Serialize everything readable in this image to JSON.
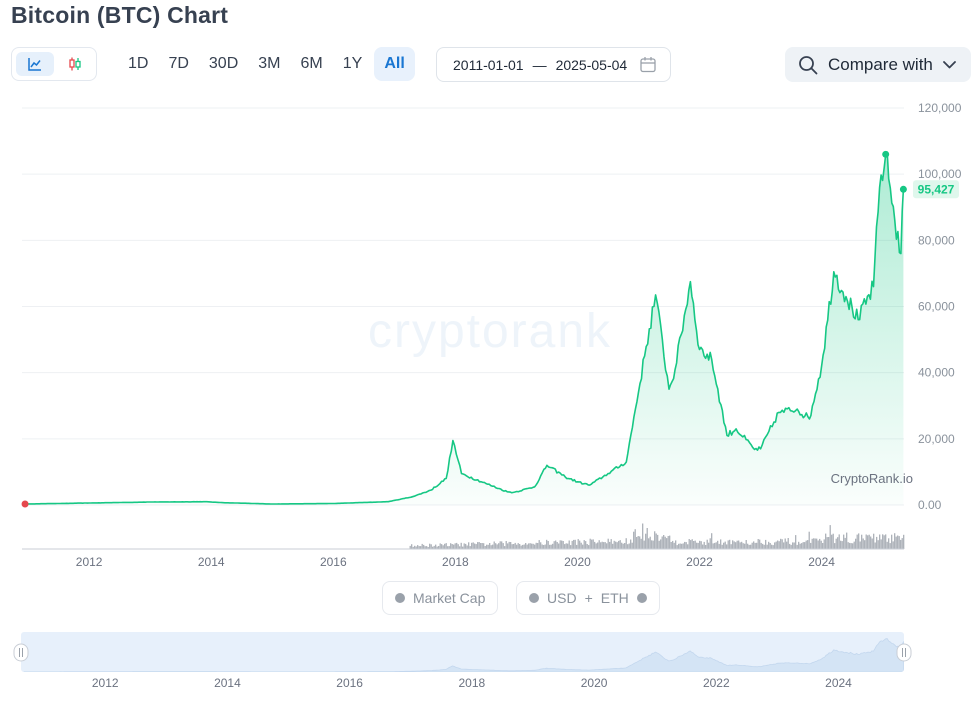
{
  "page": {
    "title": "Bitcoin (BTC) Chart"
  },
  "toolbar": {
    "ranges": [
      "1D",
      "7D",
      "30D",
      "3M",
      "6M",
      "1Y",
      "All"
    ],
    "active_range": "All",
    "date_from": "2011-01-01",
    "date_sep": "—",
    "date_to": "2025-05-04",
    "compare_label": "Compare with"
  },
  "legend": {
    "market_cap": "Market Cap",
    "usd": "USD",
    "plus": "+",
    "eth": "ETH"
  },
  "colors": {
    "line": "#16c784",
    "accent": "#1976d2",
    "start_dot": "#e5484d",
    "volume": "#a6abb3",
    "navigator_bg": "#e7f0fb",
    "navigator_area": "#d4e4f5"
  },
  "chart_data": {
    "type": "area",
    "watermark": "cryptorank",
    "attribution": "CryptoRank.io",
    "x_range": [
      2010.9,
      2025.35
    ],
    "ylim": [
      0,
      120000
    ],
    "y_ticks": [
      0,
      20000,
      40000,
      60000,
      80000,
      100000,
      120000
    ],
    "y_tick_labels": [
      "0.00",
      "20,000",
      "40,000",
      "60,000",
      "80,000",
      "100,000",
      "120,000"
    ],
    "x_ticks": [
      2012,
      2014,
      2016,
      2018,
      2020,
      2022,
      2024
    ],
    "x_tick_labels": [
      "2012",
      "2014",
      "2016",
      "2018",
      "2020",
      "2022",
      "2024"
    ],
    "last_value_label": "95,427",
    "grid": true,
    "series": [
      {
        "x": [
          2010.95,
          2012.0,
          2013.0,
          2013.9,
          2014.2,
          2015.0,
          2016.0,
          2016.9,
          2017.3,
          2017.6,
          2017.85,
          2017.96,
          2018.1,
          2018.5,
          2018.85,
          2018.95,
          2019.3,
          2019.5,
          2019.8,
          2020.0,
          2020.2,
          2020.5,
          2020.8,
          2020.95,
          2021.1,
          2021.28,
          2021.5,
          2021.6,
          2021.85,
          2022.0,
          2022.2,
          2022.45,
          2022.6,
          2022.9,
          2023.0,
          2023.3,
          2023.6,
          2023.8,
          2024.0,
          2024.2,
          2024.4,
          2024.6,
          2024.85,
          2024.95,
          2025.05,
          2025.2,
          2025.3,
          2025.34
        ],
        "y": [
          300,
          600,
          900,
          1000,
          700,
          300,
          450,
          1000,
          2500,
          4500,
          8000,
          19500,
          9500,
          6500,
          4000,
          3800,
          5500,
          12000,
          8500,
          7000,
          6000,
          9500,
          13000,
          29000,
          45000,
          63500,
          35000,
          41000,
          67500,
          47000,
          44000,
          21000,
          23000,
          16800,
          17000,
          28000,
          29000,
          26000,
          42000,
          70500,
          63000,
          56000,
          66000,
          96000,
          106000,
          86000,
          76000,
          95427
        ]
      }
    ],
    "volume_bars": true
  }
}
